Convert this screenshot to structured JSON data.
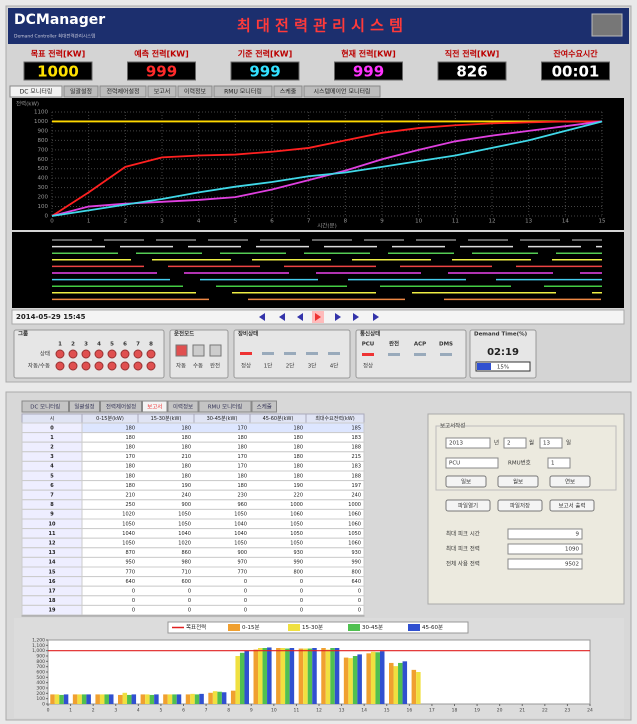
{
  "header": {
    "logo": "DCManager",
    "subtitle": "Demand Controller 최대전력관리시스템",
    "title": "최 대 전 력 관 리 시 스 템"
  },
  "metrics": [
    {
      "label": "목표 전력[KW]",
      "value": "1000",
      "color": "#ffe000"
    },
    {
      "label": "예측 전력[KW]",
      "value": "999",
      "color": "#ff2a2a"
    },
    {
      "label": "기준 전력[KW]",
      "value": "999",
      "color": "#33e0ff"
    },
    {
      "label": "현재 전력[KW]",
      "value": "999",
      "color": "#ff33ff"
    },
    {
      "label": "직전 전력[KW]",
      "value": "826",
      "color": "#ffffff"
    },
    {
      "label": "잔여수요시간",
      "value": "00:01",
      "color": "#ffffff"
    }
  ],
  "tabs_top": [
    "DC 모니터링",
    "일괄설정",
    "전력제어설정",
    "보고서",
    "이력정보",
    "RMU 모니터링",
    "스케줄",
    "시스템메이언 모니터링"
  ],
  "chart_data": [
    {
      "type": "line",
      "y_title": "전력(kW)",
      "x_title": "시간(분)",
      "x": [
        0,
        1,
        2,
        3,
        4,
        5,
        6,
        7,
        8,
        9,
        10,
        11,
        12,
        13,
        14,
        15
      ],
      "xlim": [
        0,
        15
      ],
      "xticks": [
        0,
        1,
        2,
        3,
        4,
        5,
        6,
        7,
        8,
        9,
        10,
        11,
        12,
        13,
        14,
        15
      ],
      "ylim": [
        0,
        1100
      ],
      "yticks": [
        0,
        100,
        200,
        300,
        400,
        500,
        600,
        700,
        800,
        900,
        1000,
        1100
      ],
      "grid": true,
      "series": [
        {
          "color": "#ffd800",
          "values": [
            1000,
            1000,
            1000,
            1000,
            1000,
            1000,
            1000,
            1000,
            1000,
            1000,
            1000,
            1000,
            1000,
            1000,
            1000,
            1000
          ]
        },
        {
          "color": "#ff2020",
          "values": [
            0,
            250,
            520,
            620,
            640,
            650,
            680,
            720,
            800,
            880,
            930,
            960,
            980,
            990,
            1000,
            1000
          ]
        },
        {
          "color": "#e040e0",
          "values": [
            0,
            100,
            130,
            150,
            170,
            200,
            280,
            380,
            480,
            600,
            700,
            790,
            850,
            900,
            950,
            1000
          ]
        },
        {
          "color": "#40d8e8",
          "values": [
            0,
            60,
            120,
            180,
            250,
            310,
            360,
            420,
            460,
            520,
            580,
            640,
            720,
            800,
            900,
            1000
          ]
        }
      ]
    },
    {
      "type": "bar",
      "x": [
        0,
        1,
        2,
        3,
        4,
        5,
        6,
        7,
        8,
        9,
        10,
        11,
        12,
        13,
        14,
        15,
        16,
        17,
        18,
        19,
        20,
        21,
        22,
        23
      ],
      "xlim": [
        0,
        24
      ],
      "xticks": [
        0,
        1,
        2,
        3,
        4,
        5,
        6,
        7,
        8,
        9,
        10,
        11,
        12,
        13,
        14,
        15,
        16,
        17,
        18,
        19,
        20,
        21,
        22,
        23,
        24
      ],
      "ylim": [
        0,
        1200
      ],
      "yticks": [
        0,
        100,
        200,
        300,
        400,
        500,
        600,
        700,
        800,
        900,
        {
          "value": 1000,
          "label": "1,000"
        },
        {
          "value": 1100,
          "label": "1,100"
        },
        {
          "value": 1200,
          "label": "1,200"
        }
      ],
      "target": {
        "name": "목표전력",
        "color": "#e02020",
        "value": 1000
      },
      "series": [
        {
          "name": "0-15분",
          "color": "#f0a030",
          "values": [
            180,
            180,
            180,
            170,
            180,
            180,
            180,
            210,
            250,
            1020,
            1050,
            1040,
            1050,
            870,
            950,
            770,
            640,
            0,
            0,
            0,
            0,
            0,
            0,
            0
          ]
        },
        {
          "name": "15-30분",
          "color": "#f0e040",
          "values": [
            180,
            180,
            180,
            210,
            180,
            180,
            190,
            240,
            900,
            1050,
            1050,
            1040,
            1020,
            860,
            980,
            710,
            600,
            0,
            0,
            0,
            0,
            0,
            0,
            0
          ]
        },
        {
          "name": "30-45분",
          "color": "#50c050",
          "values": [
            170,
            180,
            180,
            170,
            170,
            180,
            180,
            230,
            960,
            1050,
            1040,
            1040,
            1050,
            900,
            970,
            770,
            0,
            0,
            0,
            0,
            0,
            0,
            0,
            0
          ]
        },
        {
          "name": "45-60분",
          "color": "#3050d0",
          "values": [
            180,
            180,
            180,
            180,
            180,
            180,
            190,
            220,
            1000,
            1060,
            1050,
            1050,
            1050,
            930,
            990,
            800,
            0,
            0,
            0,
            0,
            0,
            0,
            0,
            0
          ]
        }
      ]
    }
  ],
  "date": "2014-05-29 15:45",
  "group": {
    "title": "그룹",
    "numbers": [
      "1",
      "2",
      "3",
      "4",
      "5",
      "6",
      "7",
      "8"
    ],
    "rows": [
      "상태",
      "자동/수동"
    ]
  },
  "mode": {
    "title": "운전모드",
    "labels": [
      "자동",
      "수동",
      "완전"
    ]
  },
  "device": {
    "title": "장비상태",
    "labels": [
      "정상",
      "1단",
      "2단",
      "3단",
      "4단"
    ]
  },
  "comm": {
    "title": "통신상태",
    "labels": [
      "PCU",
      "완전",
      "ACP",
      "DMS"
    ],
    "status": "정상"
  },
  "demand": {
    "title": "Demand Time(%)",
    "time": "02:19",
    "percent": "15%"
  },
  "tabs_bottom": [
    "DC 모니터링",
    "일괄설정",
    "전력제어설정",
    "보고서",
    "이력정보",
    "RMU 모니터링",
    "스케줄"
  ],
  "table": {
    "header": [
      "시",
      "0-15분(kW)",
      "15-30분(kW)",
      "30-45분(kW)",
      "45-60분(kW)",
      "최대수요전력(kW)"
    ],
    "max": [
      185,
      183,
      188,
      215,
      183,
      188,
      197,
      240,
      1000,
      1060,
      1060,
      1050,
      1060,
      930,
      990,
      800,
      640,
      0,
      0,
      0
    ]
  },
  "report": {
    "title": "보고서작성",
    "year": "2013",
    "year_unit": "년",
    "month": "2",
    "month_unit": "월",
    "day": "13",
    "day_unit": "일",
    "select": "PCU",
    "rmu_label": "RMU번호",
    "rmu": "1",
    "buttons": [
      "일보",
      "월보",
      "연보"
    ],
    "buttons2": [
      "파일열기",
      "파일저장",
      "보고서 출력"
    ],
    "fields": [
      {
        "label": "최대 피크 시간",
        "value": "9"
      },
      {
        "label": "최대 피크 전력",
        "value": "1090"
      },
      {
        "label": "전체 사용 전력",
        "value": "9502"
      }
    ]
  }
}
